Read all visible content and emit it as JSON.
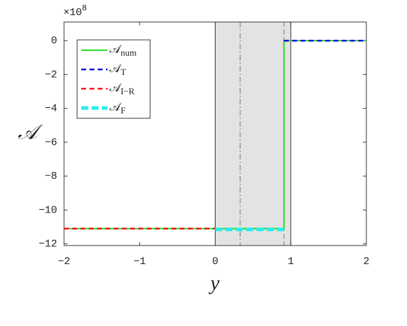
{
  "chart_data": {
    "type": "line",
    "xlabel": "y",
    "ylabel": "𝒜",
    "y_exponent_label": "×10",
    "y_exponent": "8",
    "xlim": [
      -2,
      2
    ],
    "ylim": [
      -12.1,
      1.1
    ],
    "xticks": [
      {
        "value": -2,
        "label": "−2"
      },
      {
        "value": -1,
        "label": "−1"
      },
      0,
      1,
      2
    ],
    "yticks": [
      0,
      {
        "value": -2,
        "label": "−2"
      },
      {
        "value": -4,
        "label": "−4"
      },
      {
        "value": -6,
        "label": "−6"
      },
      {
        "value": -8,
        "label": "−8"
      },
      {
        "value": -10,
        "label": "−10"
      },
      {
        "value": -12,
        "label": "−12"
      }
    ],
    "shaded_region": [
      0,
      1
    ],
    "vlines": [
      {
        "x": 0.33,
        "style": "dashdot"
      },
      {
        "x": 0.91,
        "style": "dashed"
      }
    ],
    "legend": "upper left",
    "series": [
      {
        "name": "𝒜",
        "subscript": "num",
        "color": "#22dd22",
        "style": "solid",
        "x": [
          -2,
          0.91,
          0.91,
          2
        ],
        "values": [
          -11.1,
          -11.1,
          0,
          0
        ]
      },
      {
        "name": "𝒜",
        "subscript": "T",
        "color": "#0000dd",
        "style": "dashed",
        "x": [
          0.91,
          2
        ],
        "values": [
          0,
          0
        ]
      },
      {
        "name": "𝒜",
        "subscript": "I−R",
        "color": "#ee1111",
        "style": "dashed",
        "x": [
          -2,
          0
        ],
        "values": [
          -11.1,
          -11.1
        ]
      },
      {
        "name": "𝒜",
        "subscript": "F",
        "color": "#22eeee",
        "style": "thickdashed",
        "x": [
          0,
          0.91,
          0.91,
          1
        ],
        "values": [
          -11.15,
          -11.15,
          null,
          0
        ]
      }
    ]
  }
}
